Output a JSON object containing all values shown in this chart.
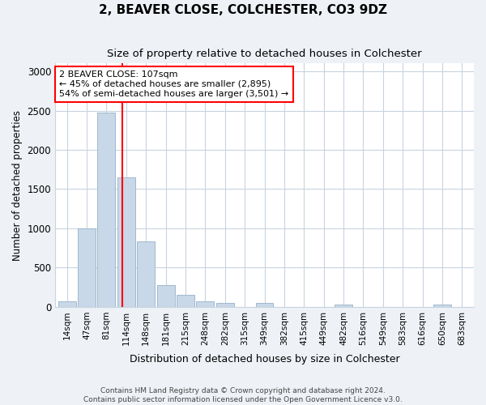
{
  "title": "2, BEAVER CLOSE, COLCHESTER, CO3 9DZ",
  "subtitle": "Size of property relative to detached houses in Colchester",
  "xlabel": "Distribution of detached houses by size in Colchester",
  "ylabel": "Number of detached properties",
  "bin_labels": [
    "14sqm",
    "47sqm",
    "81sqm",
    "114sqm",
    "148sqm",
    "181sqm",
    "215sqm",
    "248sqm",
    "282sqm",
    "315sqm",
    "349sqm",
    "382sqm",
    "415sqm",
    "449sqm",
    "482sqm",
    "516sqm",
    "549sqm",
    "583sqm",
    "616sqm",
    "650sqm",
    "683sqm"
  ],
  "bar_values": [
    75,
    1000,
    2475,
    1650,
    830,
    280,
    150,
    75,
    50,
    0,
    50,
    0,
    0,
    0,
    30,
    0,
    0,
    0,
    0,
    30,
    0
  ],
  "bar_color": "#c8d8e8",
  "bar_edgecolor": "#a0b8cc",
  "vline_x_index": 2.82,
  "vline_color": "red",
  "annotation_line1": "2 BEAVER CLOSE: 107sqm",
  "annotation_line2": "← 45% of detached houses are smaller (2,895)",
  "annotation_line3": "54% of semi-detached houses are larger (3,501) →",
  "annotation_box_color": "white",
  "annotation_box_edgecolor": "red",
  "ylim": [
    0,
    3100
  ],
  "yticks": [
    0,
    500,
    1000,
    1500,
    2000,
    2500,
    3000
  ],
  "footer_line1": "Contains HM Land Registry data © Crown copyright and database right 2024.",
  "footer_line2": "Contains public sector information licensed under the Open Government Licence v3.0.",
  "background_color": "#eef2f7",
  "plot_background_color": "#ffffff",
  "grid_color": "#c8d4e0",
  "title_fontsize": 11,
  "subtitle_fontsize": 9.5
}
